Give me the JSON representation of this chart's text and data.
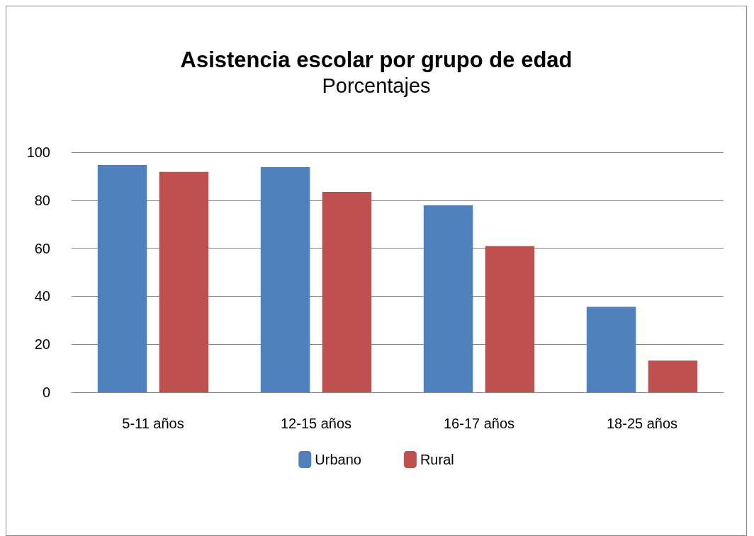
{
  "chart_data": {
    "type": "bar",
    "title": "Asistencia escolar por grupo de edad",
    "subtitle": "Porcentajes",
    "categories": [
      "5-11 años",
      "12-15 años",
      "16-17 años",
      "18-25 años"
    ],
    "series": [
      {
        "name": "Urbano",
        "color": "#4f81bd",
        "values": [
          94.7,
          93.8,
          77.9,
          35.6
        ]
      },
      {
        "name": "Rural",
        "color": "#c0504d",
        "values": [
          91.8,
          83.5,
          60.9,
          13.2
        ]
      }
    ],
    "ylim": [
      0,
      100
    ],
    "yticks": [
      0,
      20,
      40,
      60,
      80,
      100
    ],
    "grid": "y",
    "legend": "bottom"
  }
}
